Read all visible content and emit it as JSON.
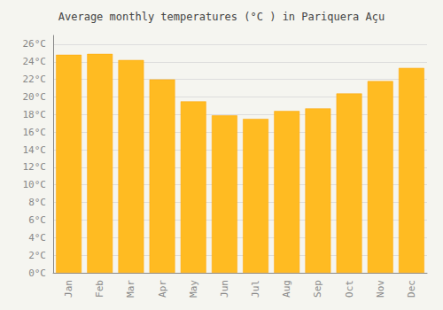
{
  "chart_data": {
    "type": "bar",
    "title": "Average monthly temperatures (°C ) in Pariquera Açu",
    "categories": [
      "Jan",
      "Feb",
      "Mar",
      "Apr",
      "May",
      "Jun",
      "Jul",
      "Aug",
      "Sep",
      "Oct",
      "Nov",
      "Dec"
    ],
    "values": [
      24.8,
      24.9,
      24.2,
      22.0,
      19.5,
      17.9,
      17.5,
      18.4,
      18.7,
      20.4,
      21.8,
      23.3
    ],
    "color": "#FFBB22",
    "ylim": [
      0,
      27
    ],
    "yticks": [
      {
        "value": 0,
        "label": "0°C"
      },
      {
        "value": 2,
        "label": "2°C"
      },
      {
        "value": 4,
        "label": "4°C"
      },
      {
        "value": 6,
        "label": "6°C"
      },
      {
        "value": 8,
        "label": "8°C"
      },
      {
        "value": 10,
        "label": "10°C"
      },
      {
        "value": 12,
        "label": "12°C"
      },
      {
        "value": 14,
        "label": "14°C"
      },
      {
        "value": 16,
        "label": "16°C"
      },
      {
        "value": 18,
        "label": "18°C"
      },
      {
        "value": 20,
        "label": "20°C"
      },
      {
        "value": 22,
        "label": "22°C"
      },
      {
        "value": 24,
        "label": "24°C"
      },
      {
        "value": 26,
        "label": "26°C"
      }
    ],
    "grid": true
  }
}
